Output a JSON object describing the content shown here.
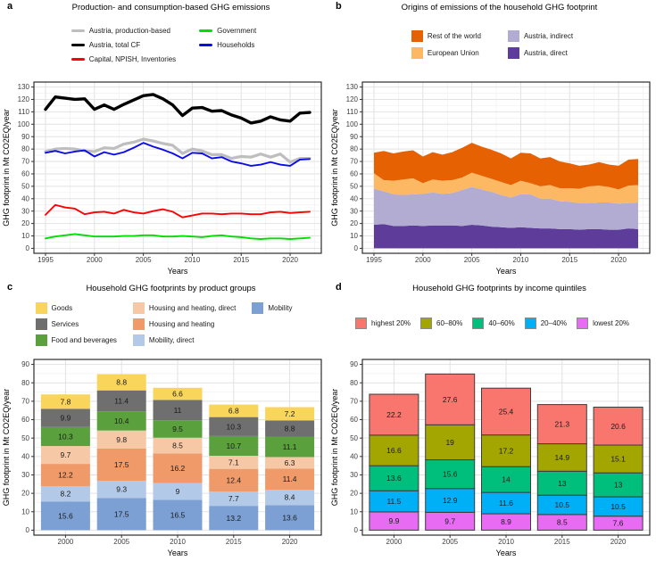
{
  "panels": {
    "a": {
      "letter": "a",
      "title": "Production- and consumption-based GHG emissions",
      "xlabel": "Years",
      "ylabel": "GHG footprint in Mt CO2EQ/year",
      "legend": {
        "key": "line",
        "columns": [
          [
            {
              "label": "Austria, production-based",
              "color": "#BEBEBE"
            },
            {
              "label": "Austria, total CF",
              "color": "#000000"
            },
            {
              "label": "Capital, NPISH, Inventories",
              "color": "#FF0000"
            }
          ],
          [
            {
              "label": "Government",
              "color": "#00DE00"
            },
            {
              "label": "Households",
              "color": "#0B0BE8"
            }
          ]
        ]
      }
    },
    "b": {
      "letter": "b",
      "title": "Origins of emissions of the household GHG footprint",
      "xlabel": "Years",
      "ylabel": "GHG footprint in Mt CO2EQ/year",
      "legend": {
        "key": "square",
        "columns": [
          [
            {
              "label": "Rest of the world",
              "color": "#E66101"
            },
            {
              "label": "European Union",
              "color": "#FDB863"
            }
          ],
          [
            {
              "label": "Austria, indirect",
              "color": "#B2ABD2"
            },
            {
              "label": "Austria, direct",
              "color": "#5E3C99"
            }
          ]
        ]
      }
    },
    "c": {
      "letter": "c",
      "title": "Household GHG footprints by product groups",
      "xlabel": "Years",
      "ylabel": "GHG footprint in Mt CO2EQ/year",
      "legend": {
        "key": "square",
        "columns": [
          [
            {
              "label": "Goods",
              "color": "#FAD55C"
            },
            {
              "label": "Services",
              "color": "#6F6F6F"
            },
            {
              "label": "Food and beverages",
              "color": "#5AA03C"
            }
          ],
          [
            {
              "label": "Housing and heating, direct",
              "color": "#F7C8A5"
            },
            {
              "label": "Housing and heating",
              "color": "#F09A69"
            },
            {
              "label": "Mobility, direct",
              "color": "#B2C9E8"
            }
          ],
          [
            {
              "label": "Mobility",
              "color": "#7C9FD4"
            }
          ]
        ]
      }
    },
    "d": {
      "letter": "d",
      "title": "Household GHG footprints by income quintiles",
      "xlabel": "Years",
      "ylabel": "GHG footprint in Mt CO2EQ/year",
      "legend": {
        "key": "square-border",
        "row": [
          {
            "label": "highest 20%",
            "color": "#F8766D"
          },
          {
            "label": "60–80%",
            "color": "#A3A500"
          },
          {
            "label": "40–60%",
            "color": "#00BF7D"
          },
          {
            "label": "20–40%",
            "color": "#00B0F6"
          },
          {
            "label": "lowest 20%",
            "color": "#E76BF3"
          }
        ]
      }
    }
  },
  "chart_data": [
    {
      "panel": "a",
      "type": "line",
      "title": "Production- and consumption-based GHG emissions",
      "xlabel": "Years",
      "ylabel": "GHG footprint in Mt CO2EQ/year",
      "ylim": [
        0,
        130
      ],
      "yticks": [
        0,
        10,
        20,
        30,
        40,
        50,
        60,
        70,
        80,
        90,
        100,
        110,
        120,
        130
      ],
      "xticks": [
        1995,
        2000,
        2005,
        2010,
        2015,
        2020
      ],
      "x": [
        1995,
        1996,
        1997,
        1998,
        1999,
        2000,
        2001,
        2002,
        2003,
        2004,
        2005,
        2006,
        2007,
        2008,
        2009,
        2010,
        2011,
        2012,
        2013,
        2014,
        2015,
        2016,
        2017,
        2018,
        2019,
        2020,
        2021,
        2022
      ],
      "series": [
        {
          "name": "Austria, production-based",
          "color": "#BEBEBE",
          "width": 3.2,
          "values": [
            78,
            80,
            80.5,
            80,
            78.5,
            78,
            81,
            80.5,
            84,
            85.5,
            88,
            86.5,
            84.5,
            83,
            76.5,
            80,
            78.5,
            75.5,
            75.5,
            72.5,
            74,
            73.5,
            76,
            73.5,
            76,
            69.5,
            72.5,
            72.5
          ]
        },
        {
          "name": "Austria, total CF",
          "color": "#000000",
          "width": 3.4,
          "values": [
            112,
            122,
            121,
            120,
            120.5,
            112,
            115.5,
            112,
            116,
            119.5,
            123,
            124,
            120.5,
            115.5,
            107,
            113,
            113.5,
            110.5,
            111,
            107.5,
            105,
            101,
            102.5,
            106,
            103.5,
            102.5,
            109,
            109.5
          ]
        },
        {
          "name": "Capital, NPISH, Inventories",
          "color": "#FF0000",
          "width": 1.9,
          "values": [
            27,
            35,
            33,
            32,
            27.5,
            29,
            29.5,
            28,
            31,
            29,
            28,
            30,
            31.5,
            29.5,
            25,
            26.5,
            28,
            28,
            27.5,
            28,
            28,
            27.5,
            27.5,
            29,
            29.5,
            28.5,
            29,
            29.5
          ]
        },
        {
          "name": "Government",
          "color": "#00DE00",
          "width": 1.9,
          "values": [
            8,
            9.5,
            10.5,
            11.5,
            10.5,
            9.5,
            9.5,
            9.5,
            10,
            10,
            10.5,
            10.5,
            9.5,
            9.5,
            10,
            9.5,
            9,
            10,
            10.5,
            9.5,
            9,
            8,
            7.5,
            8,
            8,
            7.5,
            8,
            8.5
          ]
        },
        {
          "name": "Households",
          "color": "#0B0BE8",
          "width": 1.9,
          "values": [
            77,
            78.5,
            76.5,
            78,
            79,
            74,
            77.5,
            75.5,
            77.5,
            81,
            85,
            82,
            79.5,
            76.5,
            72.5,
            77,
            76.5,
            72.5,
            73.5,
            70,
            68.5,
            66.5,
            67.5,
            69.5,
            67.5,
            66.5,
            71.5,
            72
          ]
        }
      ]
    },
    {
      "panel": "b",
      "type": "area",
      "title": "Origins of emissions of the household GHG footprint",
      "xlabel": "Years",
      "ylabel": "GHG footprint in Mt CO2EQ/year",
      "ylim": [
        0,
        130
      ],
      "yticks": [
        0,
        10,
        20,
        30,
        40,
        50,
        60,
        70,
        80,
        90,
        100,
        110,
        120,
        130
      ],
      "xticks": [
        1995,
        2000,
        2005,
        2010,
        2015,
        2020
      ],
      "x": [
        1995,
        1996,
        1997,
        1998,
        1999,
        2000,
        2001,
        2002,
        2003,
        2004,
        2005,
        2006,
        2007,
        2008,
        2009,
        2010,
        2011,
        2012,
        2013,
        2014,
        2015,
        2016,
        2017,
        2018,
        2019,
        2020,
        2021,
        2022
      ],
      "series": [
        {
          "name": "Austria, direct",
          "color": "#5E3C99",
          "values": [
            19,
            19.5,
            18,
            18,
            18.5,
            18,
            18.5,
            18.5,
            18.5,
            18,
            19,
            18.5,
            17.5,
            17,
            16.5,
            17,
            16.5,
            16,
            16,
            15.5,
            15.5,
            15,
            15.5,
            15.5,
            15,
            15,
            16,
            15.5
          ]
        },
        {
          "name": "Austria, indirect",
          "color": "#B2ABD2",
          "values": [
            29,
            26.5,
            25.5,
            25,
            25,
            26,
            26.5,
            25.5,
            26,
            29,
            30.5,
            29,
            28,
            26,
            24.5,
            26.5,
            27,
            24,
            24,
            22.5,
            22,
            21.5,
            21,
            21.5,
            22,
            21,
            20.5,
            21.5
          ]
        },
        {
          "name": "European Union",
          "color": "#FDB863",
          "values": [
            12.5,
            9,
            11,
            12.5,
            13,
            8.5,
            10.5,
            10.5,
            10.5,
            10,
            11.5,
            11,
            10.5,
            10.5,
            10,
            11,
            9,
            10,
            11,
            10.5,
            11,
            11.5,
            13.5,
            13.5,
            12.5,
            11.5,
            14,
            14
          ]
        },
        {
          "name": "Rest of the world",
          "color": "#E66101",
          "values": [
            16.5,
            23.5,
            22,
            22.5,
            22.5,
            21.5,
            22,
            21,
            22.5,
            24,
            24,
            23.5,
            23.5,
            23,
            21.5,
            22.5,
            24,
            22.5,
            22.5,
            21.5,
            20,
            18.5,
            17.5,
            19,
            18,
            19,
            21,
            21
          ]
        }
      ]
    },
    {
      "panel": "c",
      "type": "bar",
      "title": "Household GHG footprints by product groups",
      "xlabel": "Years",
      "ylabel": "GHG footprint in Mt CO2EQ/year",
      "ylim": [
        0,
        90
      ],
      "yticks": [
        0,
        10,
        20,
        30,
        40,
        50,
        60,
        70,
        80,
        90
      ],
      "categories": [
        "2000",
        "2005",
        "2010",
        "2015",
        "2020"
      ],
      "series": [
        {
          "name": "Mobility",
          "color": "#7C9FD4",
          "values": [
            15.6,
            17.5,
            16.5,
            13.2,
            13.6
          ]
        },
        {
          "name": "Mobility, direct",
          "color": "#B2C9E8",
          "values": [
            8.2,
            9.3,
            9,
            7.7,
            8.4
          ]
        },
        {
          "name": "Housing and heating",
          "color": "#F09A69",
          "values": [
            12.2,
            17.5,
            16.2,
            12.4,
            11.4
          ]
        },
        {
          "name": "Housing and heating, direct",
          "color": "#F7C8A5",
          "values": [
            9.7,
            9.8,
            8.5,
            7.1,
            6.3
          ]
        },
        {
          "name": "Food and beverages",
          "color": "#5AA03C",
          "values": [
            10.3,
            10.4,
            9.5,
            10.7,
            11.1
          ]
        },
        {
          "name": "Services",
          "color": "#6F6F6F",
          "values": [
            9.9,
            11.4,
            11,
            10.3,
            8.8
          ]
        },
        {
          "name": "Goods",
          "color": "#FAD55C",
          "values": [
            7.8,
            8.8,
            6.6,
            6.8,
            7.2
          ]
        }
      ]
    },
    {
      "panel": "d",
      "type": "bar",
      "title": "Household GHG footprints by income quintiles",
      "xlabel": "Years",
      "ylabel": "GHG footprint in Mt CO2EQ/year",
      "ylim": [
        0,
        90
      ],
      "yticks": [
        0,
        10,
        20,
        30,
        40,
        50,
        60,
        70,
        80,
        90
      ],
      "categories": [
        "2000",
        "2005",
        "2010",
        "2015",
        "2020"
      ],
      "bar_border": "#3C3C3C",
      "series": [
        {
          "name": "lowest 20%",
          "color": "#E76BF3",
          "values": [
            9.9,
            9.7,
            8.9,
            8.5,
            7.6
          ]
        },
        {
          "name": "20–40%",
          "color": "#00B0F6",
          "values": [
            11.5,
            12.9,
            11.6,
            10.5,
            10.5
          ]
        },
        {
          "name": "40–60%",
          "color": "#00BF7D",
          "values": [
            13.6,
            15.6,
            14,
            13,
            13
          ]
        },
        {
          "name": "60–80%",
          "color": "#A3A500",
          "values": [
            16.6,
            19,
            17.2,
            14.9,
            15.1
          ]
        },
        {
          "name": "highest 20%",
          "color": "#F8766D",
          "values": [
            22.2,
            27.6,
            25.4,
            21.3,
            20.6
          ]
        }
      ]
    }
  ]
}
